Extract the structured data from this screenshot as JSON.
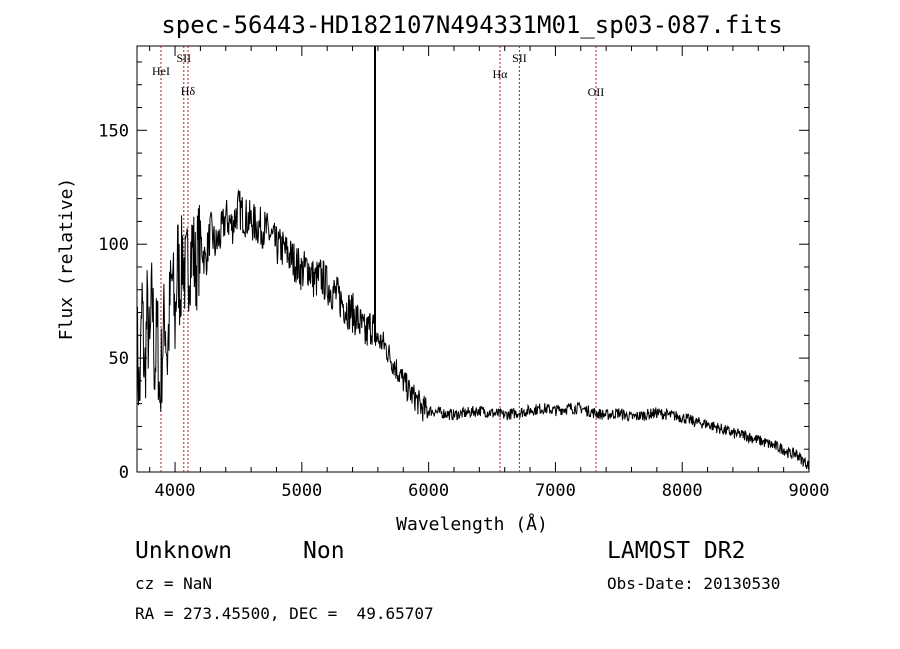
{
  "chart_data": {
    "type": "line",
    "title": "spec-56443-HD182107N494331M01_sp03-087.fits",
    "xlabel": "Wavelength (Å)",
    "ylabel": "Flux (relative)",
    "xlim": [
      3700,
      9000
    ],
    "ylim": [
      0,
      187
    ],
    "xticks": [
      4000,
      5000,
      6000,
      7000,
      8000,
      9000
    ],
    "yticks": [
      0,
      50,
      100,
      150
    ],
    "grid": false,
    "line_color": "#000000",
    "series": [
      {
        "x": [
          3700,
          3720,
          3740,
          3760,
          3780,
          3800,
          3820,
          3840,
          3860,
          3880,
          3900,
          3920,
          3940,
          3960,
          3980,
          4000,
          4020,
          4040,
          4060,
          4080,
          4100,
          4120,
          4140,
          4160,
          4180,
          4200,
          4240,
          4280,
          4320,
          4360,
          4400,
          4450,
          4500,
          4550,
          4600,
          4650,
          4700,
          4750,
          4800,
          4850,
          4900,
          4950,
          5000,
          5050,
          5100,
          5150,
          5200,
          5250,
          5300,
          5350,
          5400,
          5450,
          5500,
          5550,
          5600,
          5650,
          5700,
          5750,
          5800,
          5850,
          5900,
          5950,
          6000,
          6100,
          6200,
          6300,
          6400,
          6500,
          6600,
          6700,
          6800,
          6900,
          7000,
          7100,
          7200,
          7300,
          7400,
          7500,
          7600,
          7700,
          7800,
          7900,
          8000,
          8100,
          8200,
          8300,
          8400,
          8500,
          8600,
          8700,
          8800,
          8850,
          8900,
          8950,
          9000
        ],
        "values": [
          60,
          30,
          75,
          40,
          70,
          50,
          80,
          45,
          65,
          30,
          55,
          70,
          50,
          75,
          85,
          65,
          95,
          80,
          98,
          85,
          90,
          95,
          100,
          88,
          96,
          102,
          92,
          106,
          99,
          104,
          112,
          108,
          116,
          112,
          110,
          108,
          107,
          104,
          99,
          98,
          95,
          92,
          88,
          90,
          84,
          86,
          82,
          79,
          76,
          72,
          70,
          66,
          60,
          65,
          58,
          56,
          50,
          45,
          40,
          35,
          32,
          28,
          27,
          26,
          25,
          26,
          27,
          26,
          25,
          26,
          27,
          28,
          27,
          28,
          28,
          26,
          25,
          26,
          24,
          25,
          26,
          25,
          24,
          22,
          21,
          19,
          17,
          16,
          14,
          12,
          10,
          8,
          8,
          5,
          3
        ]
      }
    ],
    "lines": [
      {
        "label": "HeI",
        "x": 3889
      },
      {
        "label": "SII",
        "x": 4069
      },
      {
        "label": "Hδ",
        "x": 4102
      },
      {
        "label": "Hα",
        "x": 6563
      },
      {
        "label": "SII",
        "x": 6716
      },
      {
        "label": "OII",
        "x": 7320
      }
    ],
    "line_marker_color": "#b22222",
    "solid_marker_x": 5577
  },
  "info": {
    "class": "Unknown",
    "subclass": "Non",
    "survey": "LAMOST DR2",
    "cz": "cz = NaN",
    "obs_date": "Obs-Date: 20130530",
    "coords": "RA = 273.45500, DEC =  49.65707"
  }
}
